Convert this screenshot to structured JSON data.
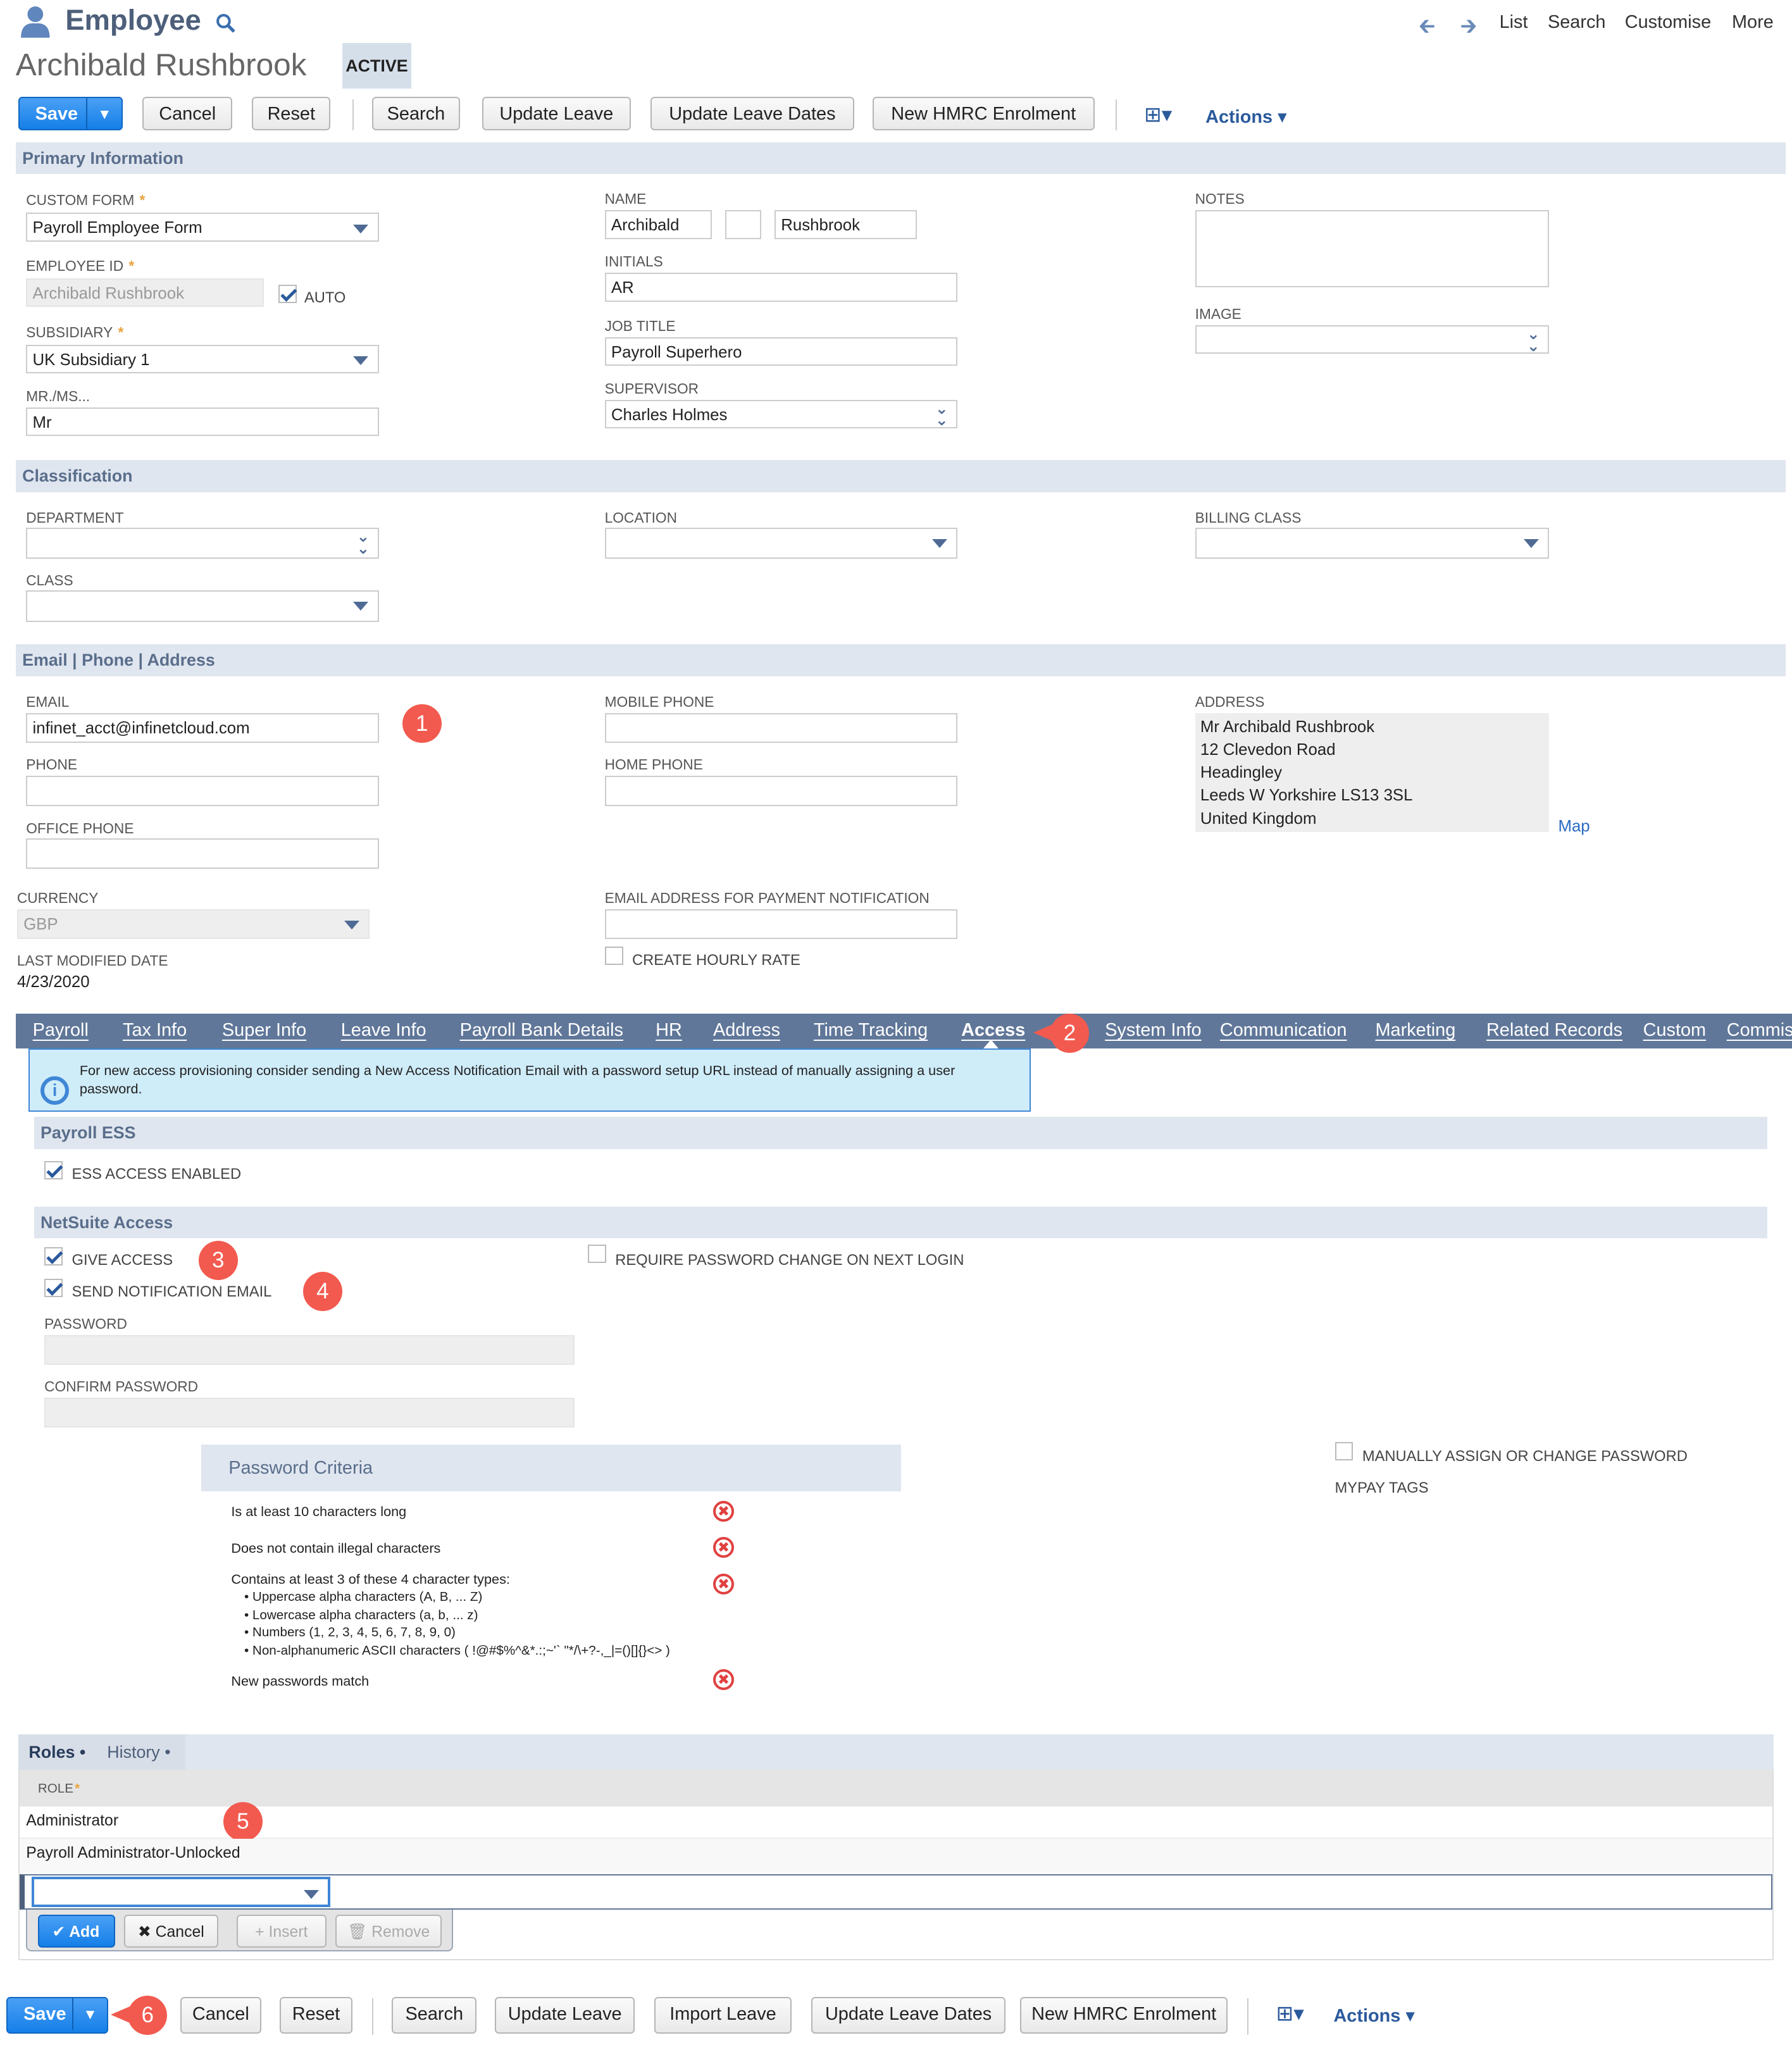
{
  "header": {
    "title": "Employee",
    "record_name": "Archibald Rushbrook",
    "status": "ACTIVE",
    "nav": [
      "List",
      "Search",
      "Customise",
      "More"
    ]
  },
  "toolbar": {
    "save": "Save",
    "buttons": [
      "Cancel",
      "Reset",
      "Search",
      "Update Leave",
      "Update Leave Dates",
      "New HMRC Enrolment"
    ],
    "actions": "Actions"
  },
  "primary": {
    "title": "Primary Information",
    "custom_form": {
      "label": "CUSTOM FORM",
      "value": "Payroll Employee Form"
    },
    "employee_id": {
      "label": "EMPLOYEE ID",
      "value": "Archibald Rushbrook",
      "auto_label": "AUTO",
      "auto": true
    },
    "subsidiary": {
      "label": "SUBSIDIARY",
      "value": "UK Subsidiary 1"
    },
    "salutation": {
      "label": "MR./MS...",
      "value": "Mr"
    },
    "name": {
      "label": "NAME",
      "first": "Archibald",
      "middle": "",
      "last": "Rushbrook"
    },
    "initials": {
      "label": "INITIALS",
      "value": "AR"
    },
    "job_title": {
      "label": "JOB TITLE",
      "value": "Payroll Superhero"
    },
    "supervisor": {
      "label": "SUPERVISOR",
      "value": "Charles Holmes"
    },
    "notes": {
      "label": "NOTES",
      "value": ""
    },
    "image": {
      "label": "IMAGE",
      "value": ""
    }
  },
  "classification": {
    "title": "Classification",
    "department": "DEPARTMENT",
    "class": "CLASS",
    "location": "LOCATION",
    "billing_class": "BILLING CLASS"
  },
  "contact": {
    "title": "Email | Phone | Address",
    "email": {
      "label": "EMAIL",
      "value": "infinet_acct@infinetcloud.com"
    },
    "phone": "PHONE",
    "office_phone": "OFFICE PHONE",
    "mobile_phone": "MOBILE PHONE",
    "home_phone": "HOME PHONE",
    "address": {
      "label": "ADDRESS",
      "lines": [
        "Mr Archibald Rushbrook",
        "12 Clevedon Road",
        "Headingley",
        "Leeds W Yorkshire LS13 3SL",
        "United Kingdom"
      ],
      "map": "Map"
    },
    "currency": {
      "label": "CURRENCY",
      "value": "GBP"
    },
    "last_modified": {
      "label": "LAST MODIFIED DATE",
      "value": "4/23/2020"
    },
    "payment_email": {
      "label": "EMAIL ADDRESS FOR PAYMENT NOTIFICATION",
      "value": ""
    },
    "hourly_rate": {
      "label": "CREATE HOURLY RATE",
      "checked": false
    }
  },
  "tabs": {
    "items": [
      "Payroll",
      "Tax Info",
      "Super Info",
      "Leave Info",
      "Payroll Bank Details",
      "HR",
      "Address",
      "Time Tracking",
      "Access",
      "System Info",
      "Communication",
      "Marketing",
      "Related Records",
      "Custom",
      "Commission"
    ],
    "active": "Access"
  },
  "access": {
    "info": "For new access provisioning consider sending a New Access Notification Email with a password setup URL instead of manually assigning a user password.",
    "payroll_ess": {
      "title": "Payroll ESS",
      "ess_enabled": "ESS ACCESS ENABLED"
    },
    "netsuite": {
      "title": "NetSuite Access",
      "give_access": "GIVE ACCESS",
      "send_notification": "SEND NOTIFICATION EMAIL",
      "require_change": "REQUIRE PASSWORD CHANGE ON NEXT LOGIN",
      "password": "PASSWORD",
      "confirm_password": "CONFIRM PASSWORD",
      "manually_assign": "MANUALLY ASSIGN OR CHANGE PASSWORD",
      "mypay_tags": "MYPAY TAGS"
    },
    "criteria": {
      "title": "Password Criteria",
      "items": [
        "Is at least 10 characters long",
        "Does not contain illegal characters",
        "Contains at least 3 of these 4 character types:",
        "New passwords match"
      ],
      "types": [
        "• Uppercase alpha characters (A, B, ... Z)",
        "• Lowercase alpha characters (a, b, ... z)",
        "• Numbers (1, 2, 3, 4, 5, 6, 7, 8, 9, 0)",
        "• Non-alphanumeric ASCII characters ( !@#$%^&*.:;~'` \"*/\\+?-,_|=()[]{}<> )"
      ]
    }
  },
  "roles": {
    "tabs": [
      "Roles",
      "History"
    ],
    "column": "ROLE",
    "rows": [
      "Administrator",
      "Payroll Administrator-Unlocked"
    ],
    "buttons": {
      "add": "Add",
      "cancel": "Cancel",
      "insert": "Insert",
      "remove": "Remove"
    }
  },
  "bottom_toolbar": {
    "save": "Save",
    "buttons": [
      "Cancel",
      "Reset",
      "Search",
      "Update Leave",
      "Import Leave",
      "Update Leave Dates",
      "New HMRC Enrolment"
    ],
    "actions": "Actions"
  },
  "annotations": [
    "1",
    "2",
    "3",
    "4",
    "5",
    "6"
  ],
  "colors": {
    "accent": "#157fe8",
    "tab_bar": "#607799",
    "band": "#e0e6ef",
    "annotation": "#f25a4f"
  }
}
